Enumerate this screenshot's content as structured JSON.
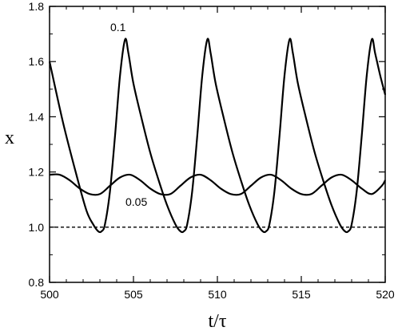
{
  "chart_data": {
    "type": "line",
    "title": "",
    "xlabel": "t/τ",
    "ylabel": "x",
    "xlim": [
      500,
      520
    ],
    "ylim": [
      0.8,
      1.8
    ],
    "xticks": [
      500,
      505,
      510,
      515,
      520
    ],
    "xtick_labels": [
      "500",
      "505",
      "510",
      "515",
      "520"
    ],
    "yticks": [
      0.8,
      1.0,
      1.2,
      1.4,
      1.6,
      1.8
    ],
    "ytick_labels": [
      "0.8",
      "1.0",
      "1.2",
      "1.4",
      "1.6",
      "1.8"
    ],
    "grid": false,
    "legend": "none",
    "annotations": [
      "0.1",
      "0.05"
    ],
    "series": [
      {
        "line_style": "solid",
        "x": [
          500,
          500.8,
          501.6,
          502.2,
          502.6,
          502.9,
          503.1,
          503.3,
          503.6,
          503.9,
          504.2,
          504.5,
          504.7,
          505.0,
          505.5,
          506.0,
          506.5,
          507.0,
          507.5,
          507.8,
          508.0,
          508.2,
          508.5,
          508.8,
          509.1,
          509.4,
          509.6,
          509.9,
          510.4,
          510.9,
          511.4,
          511.9,
          512.4,
          512.7,
          512.9,
          513.1,
          513.4,
          513.7,
          514.0,
          514.3,
          514.5,
          514.8,
          515.3,
          515.8,
          516.3,
          516.8,
          517.3,
          517.6,
          517.8,
          518.0,
          518.3,
          518.6,
          518.9,
          519.2,
          519.4,
          519.7,
          520.0
        ],
        "y": [
          1.6,
          1.38,
          1.19,
          1.06,
          1.01,
          0.985,
          0.985,
          1.01,
          1.13,
          1.33,
          1.55,
          1.68,
          1.63,
          1.52,
          1.39,
          1.27,
          1.17,
          1.08,
          1.01,
          0.985,
          0.985,
          1.01,
          1.13,
          1.33,
          1.55,
          1.68,
          1.63,
          1.52,
          1.39,
          1.27,
          1.17,
          1.08,
          1.01,
          0.985,
          0.985,
          1.01,
          1.13,
          1.33,
          1.55,
          1.68,
          1.63,
          1.52,
          1.39,
          1.27,
          1.17,
          1.08,
          1.01,
          0.985,
          0.985,
          1.01,
          1.13,
          1.33,
          1.55,
          1.68,
          1.63,
          1.55,
          1.48
        ]
      },
      {
        "line_style": "solid",
        "x": [
          500,
          500.6,
          501.2,
          501.8,
          502.4,
          503.0,
          503.6,
          504.2,
          504.8,
          505.4,
          506.0,
          506.6,
          507.2,
          507.8,
          508.4,
          509.0,
          509.6,
          510.2,
          510.8,
          511.4,
          512.0,
          512.6,
          513.2,
          513.8,
          514.4,
          515.0,
          515.6,
          516.2,
          516.8,
          517.4,
          518.0,
          518.6,
          519.2,
          519.8,
          520.0
        ],
        "y": [
          1.19,
          1.19,
          1.17,
          1.14,
          1.12,
          1.12,
          1.15,
          1.18,
          1.19,
          1.17,
          1.14,
          1.12,
          1.12,
          1.15,
          1.18,
          1.19,
          1.17,
          1.14,
          1.12,
          1.12,
          1.15,
          1.18,
          1.19,
          1.17,
          1.14,
          1.12,
          1.12,
          1.15,
          1.18,
          1.19,
          1.17,
          1.14,
          1.12,
          1.15,
          1.17
        ]
      },
      {
        "line_style": "dashed",
        "x": [
          500,
          520
        ],
        "y": [
          1.0,
          1.0
        ]
      }
    ]
  }
}
